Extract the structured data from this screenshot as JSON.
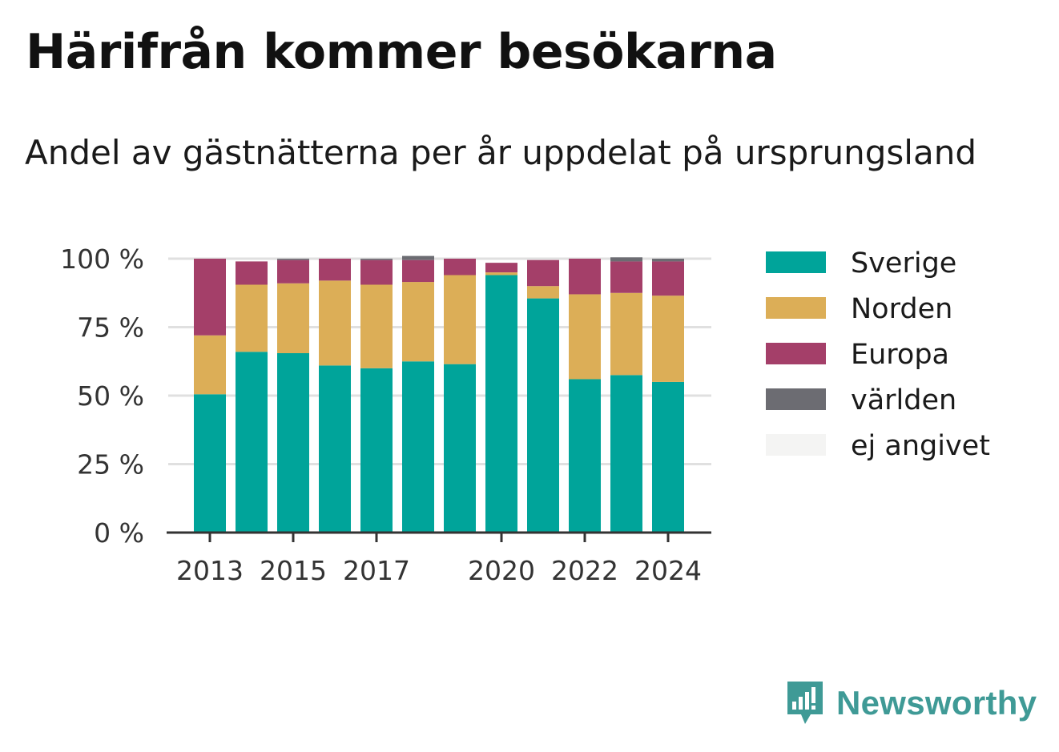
{
  "title": "Härifrån kommer besökarna",
  "subtitle": "Andel av gästnätterna per år uppdelat på ursprungsland",
  "colors": {
    "Sverige": "#00a49a",
    "Norden": "#dcae57",
    "Europa": "#a43f69",
    "världen": "#6c6c72",
    "ej angivet": "#f4f4f3",
    "grid": "#e0e0e0",
    "axis": "#333333"
  },
  "chart_data": {
    "type": "bar",
    "stacked": true,
    "categories": [
      "2013",
      "2014",
      "2015",
      "2016",
      "2017",
      "2018",
      "2019",
      "2020",
      "2021",
      "2022",
      "2023",
      "2024"
    ],
    "x_tick_labels": [
      "2013",
      "",
      "2015",
      "",
      "2017",
      "",
      "",
      "2020",
      "",
      "2022",
      "",
      "2024"
    ],
    "y_ticks": [
      "0 %",
      "25 %",
      "50 %",
      "75 %",
      "100 %"
    ],
    "ylim": [
      0,
      100
    ],
    "series": [
      {
        "name": "Sverige",
        "values": [
          50.5,
          66,
          65.5,
          61,
          60,
          62.5,
          61.5,
          94,
          85.5,
          56,
          57.5,
          55
        ]
      },
      {
        "name": "Norden",
        "values": [
          21.5,
          24.5,
          25.5,
          31,
          30.5,
          29,
          32.5,
          1,
          4.5,
          31,
          30,
          31.5
        ]
      },
      {
        "name": "Europa",
        "values": [
          28,
          8.5,
          8.5,
          8,
          9,
          8,
          6,
          3.5,
          9.5,
          13,
          11.5,
          12.5
        ]
      },
      {
        "name": "världen",
        "values": [
          0,
          0,
          0.5,
          0,
          0.5,
          1.5,
          0,
          0,
          0,
          0,
          1.5,
          1
        ]
      },
      {
        "name": "ej angivet",
        "values": [
          0,
          0,
          0,
          0,
          0,
          0,
          0,
          0,
          0,
          0,
          0,
          0
        ]
      }
    ],
    "legend": [
      "Sverige",
      "Norden",
      "Europa",
      "världen",
      "ej angivet"
    ],
    "legend_position": "right",
    "grid": true
  },
  "brand": {
    "name": "Newsworthy"
  }
}
